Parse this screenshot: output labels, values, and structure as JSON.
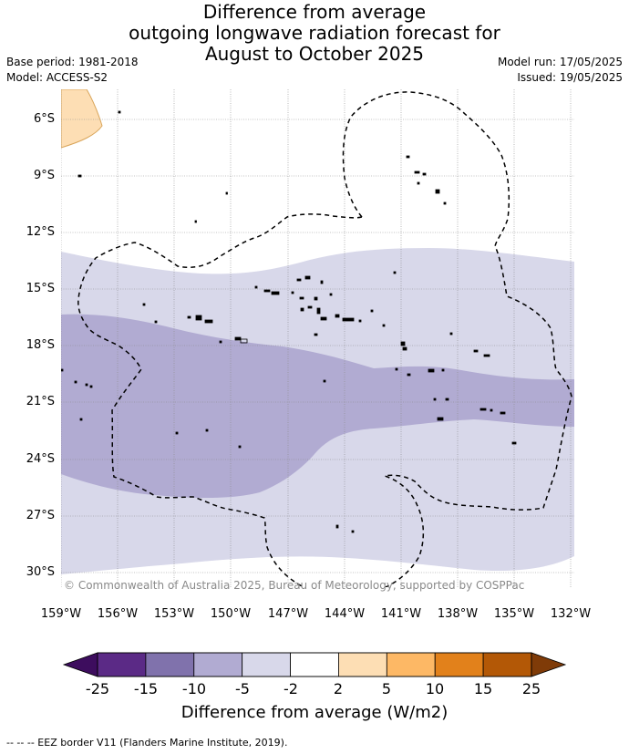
{
  "title": {
    "line1": "Difference from average",
    "line2": "outgoing longwave radiation forecast for",
    "line3": "August to October 2025"
  },
  "meta": {
    "base_period": "Base period: 1981-2018",
    "model": "Model: ACCESS-S2",
    "model_run": "Model run: 17/05/2025",
    "issued": "Issued: 19/05/2025"
  },
  "axes": {
    "lat_labels": [
      "6°S",
      "9°S",
      "12°S",
      "15°S",
      "18°S",
      "21°S",
      "24°S",
      "27°S",
      "30°S"
    ],
    "lon_labels": [
      "159°W",
      "156°W",
      "153°W",
      "150°W",
      "147°W",
      "144°W",
      "141°W",
      "138°W",
      "135°W",
      "132°W"
    ]
  },
  "copyright": "© Commonwealth of Australia 2025, Bureau of Meteorology, supported by COSPPac",
  "colorbar": {
    "labels": [
      "-25",
      "-15",
      "-10",
      "-5",
      "-2",
      "2",
      "5",
      "10",
      "15",
      "25"
    ],
    "colors": [
      "#5b2a86",
      "#8072ac",
      "#b1abd2",
      "#d8d8ea",
      "#ffffff",
      "#fddeb4",
      "#fdb865",
      "#e2811b",
      "#b35806"
    ],
    "under_color": "#3d0d5e",
    "over_color": "#7f3b08",
    "title": "Difference from average (W/m2)"
  },
  "footnote": "--  --  -- EEZ border V11 (Flanders Marine Institute, 2019).",
  "map_colors": {
    "light_purple": "#d8d8ea",
    "mid_purple": "#b1abd2",
    "light_orange": "#fddeb4"
  }
}
